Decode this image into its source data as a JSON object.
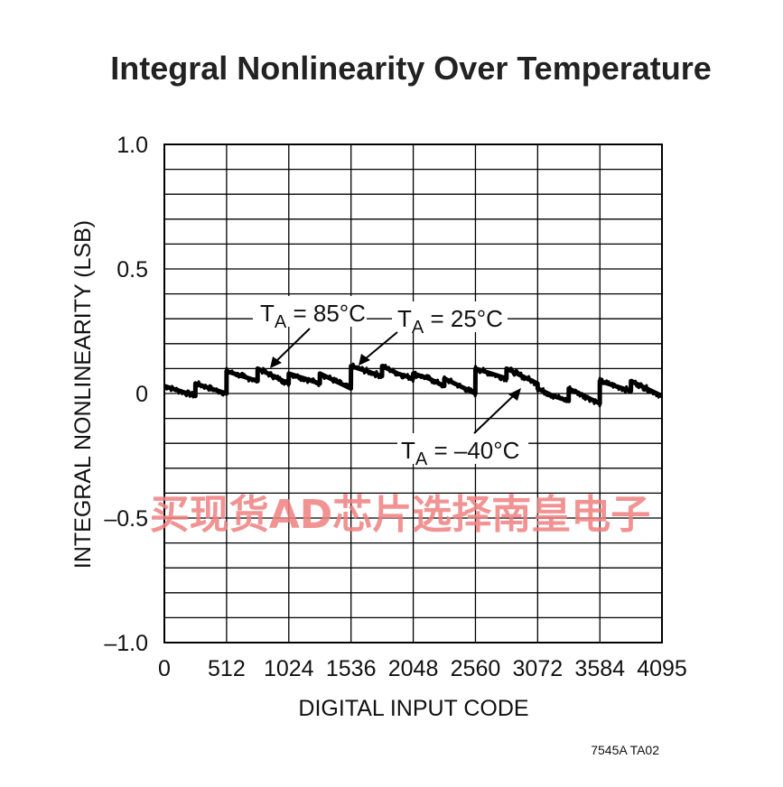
{
  "chart_data": {
    "type": "line",
    "title": "Integral Nonlinearity Over Temperature",
    "xlabel": "DIGITAL INPUT CODE",
    "ylabel": "INTEGRAL NONLINEARITY (LSB)",
    "xlim": [
      0,
      4095
    ],
    "ylim": [
      -1.0,
      1.0
    ],
    "x_ticks": [
      0,
      512,
      1024,
      1536,
      2048,
      2560,
      3072,
      3584,
      4095
    ],
    "x_tick_labels": [
      "0",
      "512",
      "1024",
      "1536",
      "2048",
      "2560",
      "3072",
      "3584",
      "4095"
    ],
    "y_ticks": [
      1.0,
      0.5,
      0,
      -0.5,
      -1.0
    ],
    "y_tick_labels": [
      "1.0",
      "0.5",
      "0",
      "–0.5",
      "–1.0"
    ],
    "grid": true,
    "series": [
      {
        "color": "#000000",
        "x": [
          0,
          128,
          255,
          256,
          384,
          511,
          512,
          640,
          767,
          768,
          896,
          1023,
          1024,
          1152,
          1279,
          1280,
          1408,
          1535,
          1536,
          1664,
          1791,
          1792,
          1920,
          2047,
          2048,
          2176,
          2303,
          2304,
          2432,
          2559,
          2560,
          2688,
          2815,
          2816,
          2944,
          3071,
          3072,
          3200,
          3327,
          3328,
          3456,
          3583,
          3584,
          3712,
          3839,
          3840,
          3968,
          4095
        ],
        "y": [
          0.03,
          0.01,
          -0.01,
          0.04,
          0.02,
          0.0,
          0.09,
          0.07,
          0.05,
          0.1,
          0.07,
          0.04,
          0.08,
          0.06,
          0.04,
          0.08,
          0.05,
          0.02,
          0.11,
          0.09,
          0.07,
          0.11,
          0.08,
          0.06,
          0.08,
          0.06,
          0.03,
          0.06,
          0.03,
          0.0,
          0.1,
          0.08,
          0.06,
          0.1,
          0.07,
          0.04,
          0.02,
          -0.01,
          -0.03,
          0.02,
          -0.01,
          -0.04,
          0.05,
          0.03,
          0.01,
          0.05,
          0.02,
          -0.01
        ]
      }
    ],
    "annotations": [
      {
        "prefix": "T",
        "sub": "A",
        "text": " = 85°C"
      },
      {
        "prefix": "T",
        "sub": "A",
        "text": " = 25°C"
      },
      {
        "prefix": "T",
        "sub": "A",
        "text": " = –40°C"
      }
    ]
  },
  "watermark": "买现货AD芯片选择南皇电子",
  "footnote": "7545A TA02"
}
